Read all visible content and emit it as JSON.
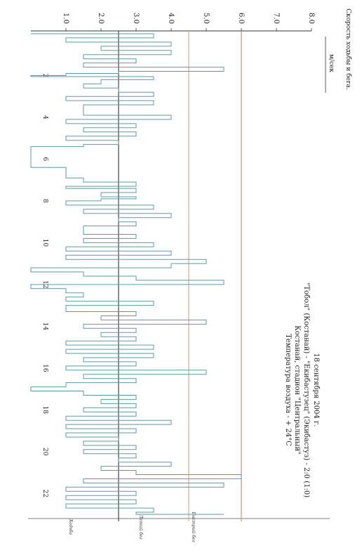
{
  "chart_data": {
    "type": "line",
    "title_lines": [
      "18 сентября 2004 г.",
      "\"Тобол\" (Костанай) - \"Екибастузец\" (Экибастуз) - 2:0 (1:0)",
      "Костанай, стадион \"Центральный\"",
      "Температура воздуха - + 24°С"
    ],
    "ylabel": "Скорость ходьбы и бега.",
    "yunit": "м/сек",
    "xlabel": "",
    "ylim": [
      0,
      8.0
    ],
    "y_ticks": [
      "1.0",
      "2.0",
      "3.0",
      "4.0",
      "5.0",
      "6.0",
      "7.0",
      "8.0"
    ],
    "xlim": [
      0,
      23
    ],
    "x_ticks": [
      "2",
      "4",
      "6",
      "8",
      "10",
      "12",
      "14",
      "16",
      "18",
      "20",
      "22"
    ],
    "thresholds": [
      {
        "label": "Ходьба",
        "value": 2.5,
        "color": "#444444"
      },
      {
        "label": "Легкий бег",
        "value": 4.5,
        "color": "#d9a88a"
      },
      {
        "label": "Быстрый бег",
        "value": 6.0,
        "color": "#cf8a80"
      }
    ],
    "series": [
      {
        "color": "#5a9aa8",
        "points": [
          [
            0.0,
            3.5
          ],
          [
            0.2,
            1.0
          ],
          [
            0.4,
            4.0
          ],
          [
            0.6,
            2.0
          ],
          [
            0.8,
            4.0
          ],
          [
            1.0,
            1.5
          ],
          [
            1.2,
            3.0
          ],
          [
            1.4,
            1.5
          ],
          [
            1.6,
            5.5
          ],
          [
            1.8,
            2.5
          ],
          [
            1.9,
            1.0
          ],
          [
            2.0,
            0.0
          ],
          [
            2.05,
            3.5
          ],
          [
            2.2,
            2.0
          ],
          [
            2.4,
            1.5
          ],
          [
            2.6,
            2.5
          ],
          [
            2.8,
            3.5
          ],
          [
            3.0,
            1.0
          ],
          [
            3.2,
            3.5
          ],
          [
            3.4,
            1.5
          ],
          [
            3.6,
            1.5
          ],
          [
            3.8,
            1.5
          ],
          [
            3.9,
            4.0
          ],
          [
            4.1,
            1.0
          ],
          [
            4.3,
            3.0
          ],
          [
            4.5,
            1.5
          ],
          [
            4.7,
            3.0
          ],
          [
            4.9,
            1.0
          ],
          [
            5.1,
            2.5
          ],
          [
            5.3,
            1.5
          ],
          [
            5.4,
            0.0
          ],
          [
            5.8,
            0.0
          ],
          [
            6.0,
            0.0
          ],
          [
            6.2,
            0.0
          ],
          [
            6.4,
            1.0
          ],
          [
            6.6,
            1.0
          ],
          [
            6.9,
            1.5
          ],
          [
            7.1,
            3.0
          ],
          [
            7.3,
            1.0
          ],
          [
            7.4,
            3.0
          ],
          [
            7.6,
            2.0
          ],
          [
            7.8,
            3.0
          ],
          [
            7.9,
            2.0
          ],
          [
            8.0,
            1.0
          ],
          [
            8.2,
            3.5
          ],
          [
            8.4,
            1.5
          ],
          [
            8.6,
            4.0
          ],
          [
            8.8,
            2.5
          ],
          [
            9.0,
            3.0
          ],
          [
            9.2,
            1.5
          ],
          [
            9.6,
            3.0
          ],
          [
            9.8,
            1.5
          ],
          [
            10.0,
            3.5
          ],
          [
            10.2,
            1.0
          ],
          [
            10.4,
            4.0
          ],
          [
            10.6,
            1.0
          ],
          [
            10.8,
            5.0
          ],
          [
            11.0,
            4.0
          ],
          [
            11.2,
            0.0
          ],
          [
            11.4,
            1.5
          ],
          [
            11.6,
            3.0
          ],
          [
            11.8,
            5.5
          ],
          [
            12.0,
            0.0
          ],
          [
            12.2,
            1.0
          ],
          [
            12.4,
            1.5
          ],
          [
            12.6,
            1.0
          ],
          [
            12.8,
            3.5
          ],
          [
            13.0,
            1.0
          ],
          [
            13.3,
            3.0
          ],
          [
            13.5,
            2.0
          ],
          [
            13.7,
            5.0
          ],
          [
            13.9,
            1.5
          ],
          [
            14.1,
            3.0
          ],
          [
            14.3,
            2.0
          ],
          [
            14.5,
            3.0
          ],
          [
            14.7,
            1.0
          ],
          [
            14.9,
            3.5
          ],
          [
            15.1,
            1.0
          ],
          [
            15.3,
            3.5
          ],
          [
            15.5,
            1.5
          ],
          [
            15.7,
            3.0
          ],
          [
            15.9,
            1.0
          ],
          [
            16.1,
            5.0
          ],
          [
            16.3,
            1.5
          ],
          [
            16.5,
            3.0
          ],
          [
            16.7,
            1.0
          ],
          [
            16.9,
            0.0
          ],
          [
            17.1,
            1.5
          ],
          [
            17.3,
            3.0
          ],
          [
            17.5,
            2.0
          ],
          [
            17.7,
            3.0
          ],
          [
            17.9,
            1.5
          ],
          [
            18.1,
            3.0
          ],
          [
            18.3,
            1.0
          ],
          [
            18.5,
            4.0
          ],
          [
            18.7,
            1.0
          ],
          [
            18.9,
            3.0
          ],
          [
            19.1,
            1.0
          ],
          [
            19.3,
            2.5
          ],
          [
            19.5,
            1.5
          ],
          [
            19.7,
            3.0
          ],
          [
            19.9,
            1.5
          ],
          [
            20.1,
            3.0
          ],
          [
            20.3,
            2.5
          ],
          [
            20.5,
            4.0
          ],
          [
            20.7,
            2.0
          ],
          [
            20.9,
            3.0
          ],
          [
            21.1,
            6.0
          ],
          [
            21.3,
            1.5
          ],
          [
            21.5,
            5.5
          ],
          [
            21.7,
            1.0
          ],
          [
            21.9,
            3.0
          ],
          [
            22.1,
            1.0
          ],
          [
            22.3,
            3.0
          ],
          [
            22.5,
            1.0
          ],
          [
            22.7,
            3.5
          ],
          [
            22.9,
            3.0
          ],
          [
            23.0,
            5.5
          ]
        ]
      }
    ],
    "grid": false,
    "legend": "none"
  }
}
